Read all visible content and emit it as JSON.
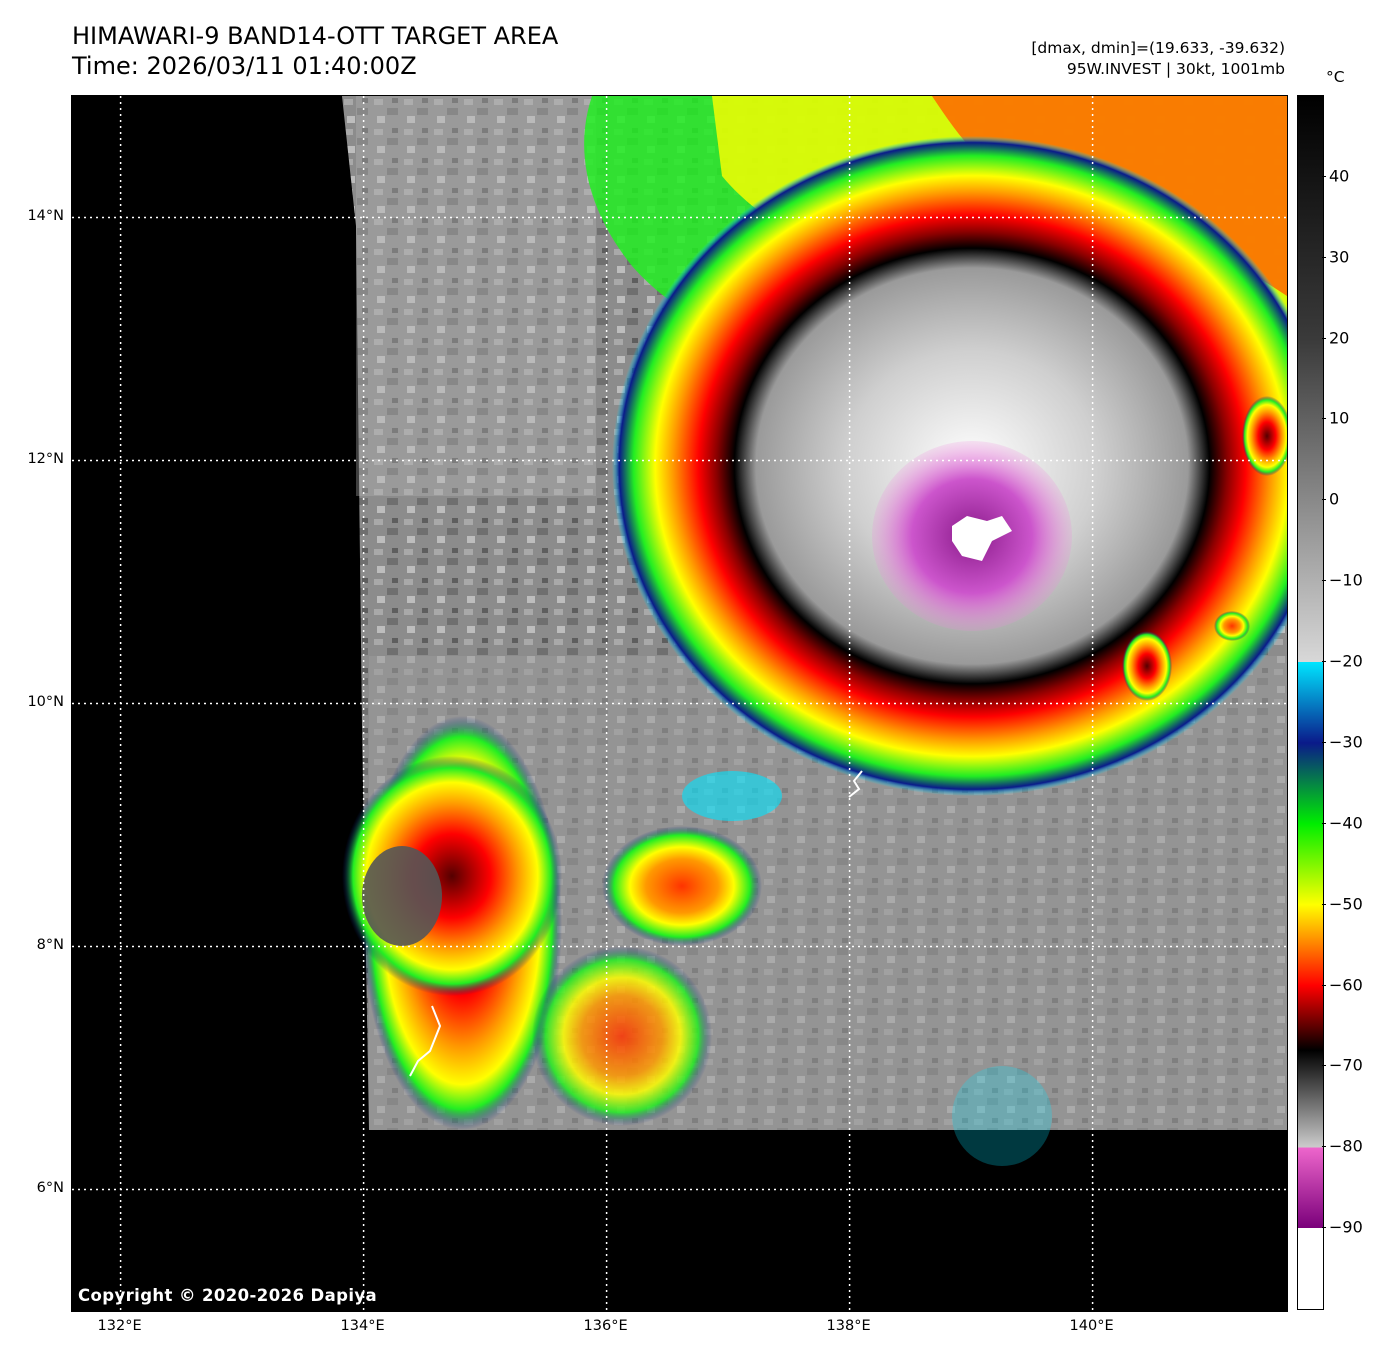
{
  "header": {
    "title_line1": "HIMAWARI-9 BAND14-OTT TARGET AREA",
    "title_line2": "Time: 2026/03/11 01:40:00Z",
    "info_line1": "[dmax, dmin]=(19.633, -39.632)",
    "info_line2": "95W.INVEST | 30kt, 1001mb"
  },
  "map": {
    "copyright": "Copyright © 2020-2026 Dapiya",
    "lat_labels": [
      "14°N",
      "12°N",
      "10°N",
      "8°N",
      "6°N"
    ],
    "lon_labels": [
      "132°E",
      "134°E",
      "136°E",
      "138°E",
      "140°E"
    ],
    "lat_values": [
      14,
      12,
      10,
      8,
      6
    ],
    "lon_values": [
      132,
      134,
      136,
      138,
      140
    ],
    "lat_range": [
      5.0,
      15.0
    ],
    "lon_range": [
      131.6,
      141.6
    ],
    "gridlines": "dotted white",
    "storm_center": {
      "lat": 11.6,
      "lon": 139.1
    }
  },
  "colorbar": {
    "unit": "°C",
    "ticks": [
      "40",
      "30",
      "20",
      "10",
      "0",
      "−10",
      "−20",
      "−30",
      "−40",
      "−50",
      "−60",
      "−70",
      "−80",
      "−90"
    ],
    "tick_values": [
      40,
      30,
      20,
      10,
      0,
      -10,
      -20,
      -30,
      -40,
      -50,
      -60,
      -70,
      -80,
      -90
    ],
    "range": [
      -100,
      50
    ],
    "stops": [
      {
        "t": 50,
        "color": "#000000"
      },
      {
        "t": 20,
        "color": "#3a3a3a"
      },
      {
        "t": -20,
        "color": "#d8d8d8"
      },
      {
        "t": -20.01,
        "color": "#00e5ff"
      },
      {
        "t": -30,
        "color": "#0a1a8a"
      },
      {
        "t": -40,
        "color": "#00ee00"
      },
      {
        "t": -50,
        "color": "#ffff00"
      },
      {
        "t": -60,
        "color": "#ff0000"
      },
      {
        "t": -68,
        "color": "#000000"
      },
      {
        "t": -80,
        "color": "#cccccc"
      },
      {
        "t": -80.01,
        "color": "#ee66cc"
      },
      {
        "t": -90,
        "color": "#7a007a"
      },
      {
        "t": -90.01,
        "color": "#ffffff"
      },
      {
        "t": -100,
        "color": "#ffffff"
      }
    ]
  }
}
